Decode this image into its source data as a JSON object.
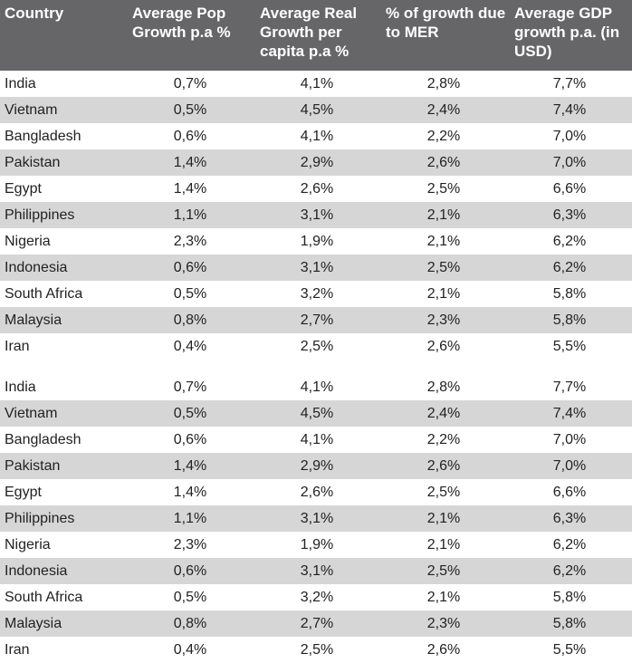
{
  "headers": [
    "Country",
    "Average Pop Growth p.a %",
    "Average Real Growth per capita p.a %",
    "% of growth due to MER",
    "Average GDP growth p.a. (in USD)"
  ],
  "rows": [
    [
      "India",
      "0,7%",
      "4,1%",
      "2,8%",
      "7,7%"
    ],
    [
      "Vietnam",
      "0,5%",
      "4,5%",
      "2,4%",
      "7,4%"
    ],
    [
      "Bangladesh",
      "0,6%",
      "4,1%",
      "2,2%",
      "7,0%"
    ],
    [
      "Pakistan",
      "1,4%",
      "2,9%",
      "2,6%",
      "7,0%"
    ],
    [
      "Egypt",
      "1,4%",
      "2,6%",
      "2,5%",
      "6,6%"
    ],
    [
      "Philippines",
      "1,1%",
      "3,1%",
      "2,1%",
      "6,3%"
    ],
    [
      "Nigeria",
      "2,3%",
      "1,9%",
      "2,1%",
      "6,2%"
    ],
    [
      "Indonesia",
      "0,6%",
      "3,1%",
      "2,5%",
      "6,2%"
    ],
    [
      "South Africa",
      "0,5%",
      "3,2%",
      "2,1%",
      "5,8%"
    ],
    [
      "Malaysia",
      "0,8%",
      "2,7%",
      "2,3%",
      "5,8%"
    ],
    [
      "Iran",
      "0,4%",
      "2,5%",
      "2,6%",
      "5,5%"
    ],
    [
      "India",
      "0,7%",
      "4,1%",
      "2,8%",
      "7,7%"
    ],
    [
      "Vietnam",
      "0,5%",
      "4,5%",
      "2,4%",
      "7,4%"
    ],
    [
      "Bangladesh",
      "0,6%",
      "4,1%",
      "2,2%",
      "7,0%"
    ],
    [
      "Pakistan",
      "1,4%",
      "2,9%",
      "2,6%",
      "7,0%"
    ],
    [
      "Egypt",
      "1,4%",
      "2,6%",
      "2,5%",
      "6,6%"
    ],
    [
      "Philippines",
      "1,1%",
      "3,1%",
      "2,1%",
      "6,3%"
    ],
    [
      "Nigeria",
      "2,3%",
      "1,9%",
      "2,1%",
      "6,2%"
    ],
    [
      "Indonesia",
      "0,6%",
      "3,1%",
      "2,5%",
      "6,2%"
    ],
    [
      "South Africa",
      "0,5%",
      "3,2%",
      "2,1%",
      "5,8%"
    ],
    [
      "Malaysia",
      "0,8%",
      "2,7%",
      "2,3%",
      "5,8%"
    ],
    [
      "Iran",
      "0,4%",
      "2,5%",
      "2,6%",
      "5,5%"
    ]
  ],
  "colors": {
    "header_bg": "#666567",
    "header_text": "#ffffff",
    "shaded_row": "#d6d6d6"
  }
}
